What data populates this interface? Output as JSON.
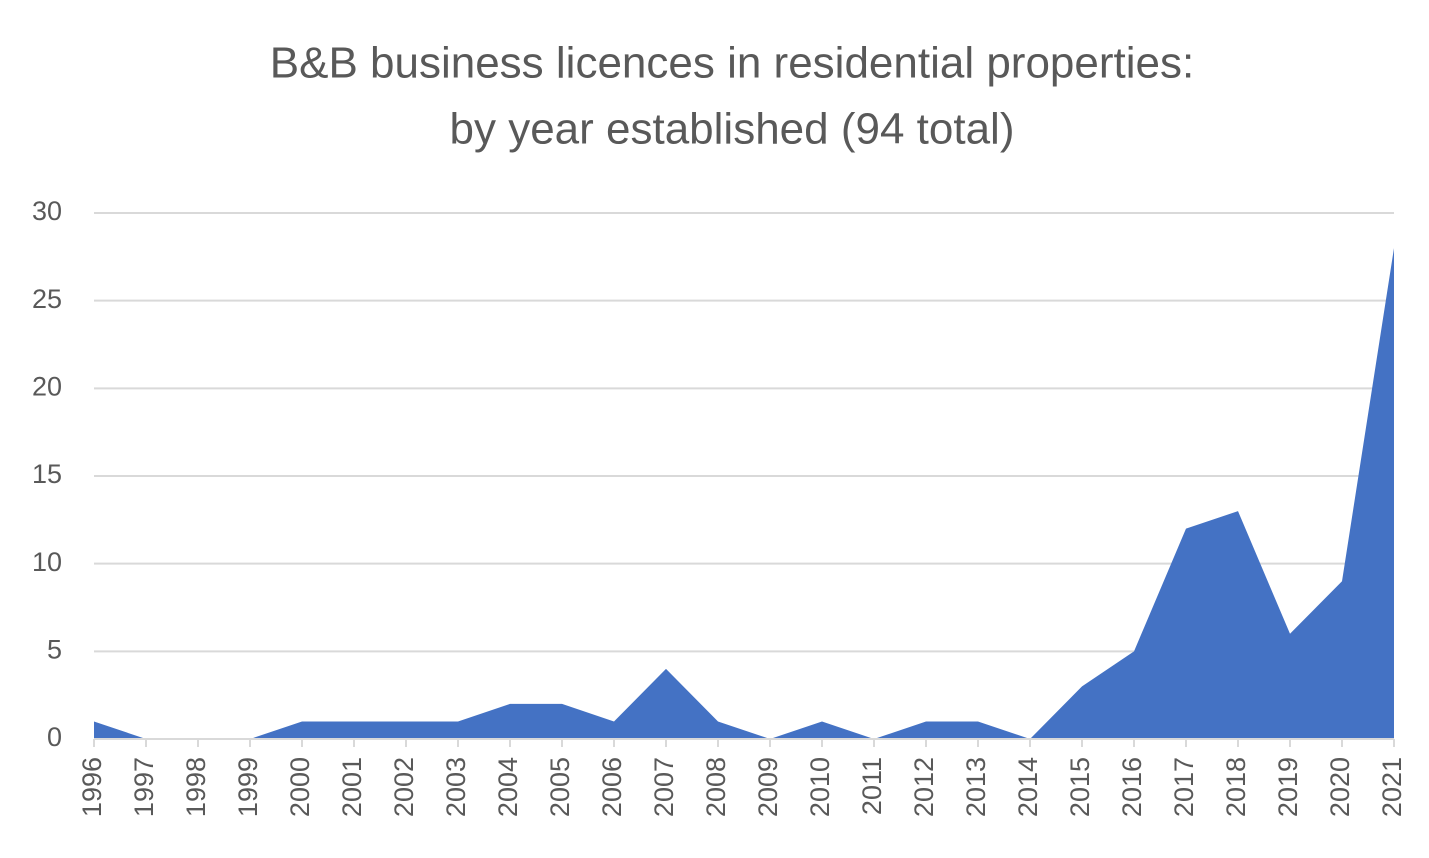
{
  "chart_data": {
    "type": "area",
    "title": [
      "B&B business licences in residential properties:",
      "by year established (94 total)"
    ],
    "categories": [
      "1996",
      "1997",
      "1998",
      "1999",
      "2000",
      "2001",
      "2002",
      "2003",
      "2004",
      "2005",
      "2006",
      "2007",
      "2008",
      "2009",
      "2010",
      "2011",
      "2012",
      "2013",
      "2014",
      "2015",
      "2016",
      "2017",
      "2018",
      "2019",
      "2020",
      "2021"
    ],
    "values": [
      1,
      0,
      0,
      0,
      1,
      1,
      1,
      1,
      2,
      2,
      1,
      4,
      1,
      0,
      1,
      0,
      1,
      1,
      0,
      3,
      5,
      12,
      13,
      6,
      9,
      28
    ],
    "color": "#4472c4",
    "ylim": [
      0,
      30
    ],
    "yticks": [
      0,
      5,
      10,
      15,
      20,
      25,
      30
    ],
    "grid": true
  }
}
